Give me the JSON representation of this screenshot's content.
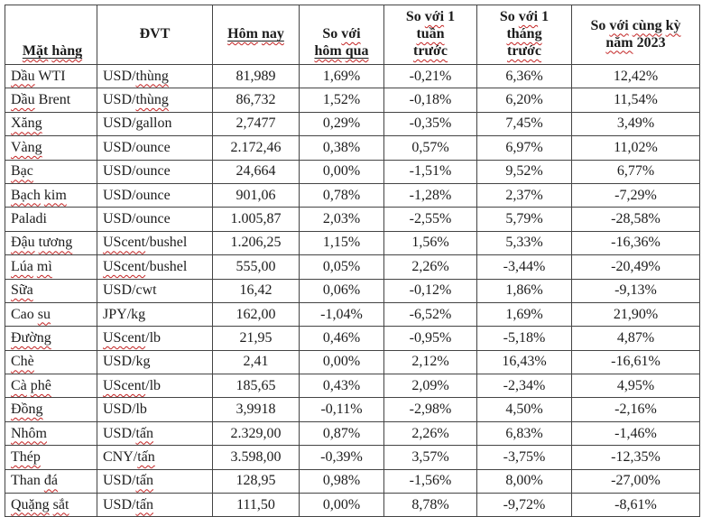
{
  "table": {
    "title_semantic": "commodity-price-change-table",
    "colors": {
      "text": "#1c1c1c",
      "border": "#444444",
      "spellcheck_wavy": "#c22222",
      "background": "#ffffff"
    },
    "headers": [
      {
        "id": "mat-hang",
        "lines": [
          {
            "text": "Mặt hàng",
            "underline": true
          }
        ]
      },
      {
        "id": "dvt",
        "lines": [
          {
            "text": "ĐVT",
            "underline": false
          }
        ]
      },
      {
        "id": "hom-nay",
        "lines": [
          {
            "text": "Hôm nay",
            "underline": true
          }
        ]
      },
      {
        "id": "so-voi-hom-qua",
        "lines": [
          {
            "text": "So với",
            "underline": false
          },
          {
            "text": "hôm qua",
            "underline": true
          }
        ]
      },
      {
        "id": "so-voi-1-tuan-truoc",
        "lines": [
          {
            "text": "So với 1",
            "underline": false
          },
          {
            "text": "tuần",
            "underline": false
          },
          {
            "text": "trước",
            "underline": false
          }
        ]
      },
      {
        "id": "so-voi-1-thang-truoc",
        "lines": [
          {
            "text": "So với 1",
            "underline": false
          },
          {
            "text": "tháng",
            "underline": false
          },
          {
            "text": "trước",
            "underline": false
          }
        ]
      },
      {
        "id": "so-voi-cung-ky-2023",
        "lines": [
          {
            "text": "So với cùng kỳ",
            "underline": false
          },
          {
            "text": "năm 2023",
            "underline": false
          }
        ]
      }
    ],
    "rows": [
      {
        "name": "Dầu WTI",
        "unit": "USD/thùng",
        "today": "81,989",
        "vs_yesterday": "1,69%",
        "vs_1_week": "-0,21%",
        "vs_1_month": "6,36%",
        "vs_2023": "12,42%"
      },
      {
        "name": "Dầu Brent",
        "unit": "USD/thùng",
        "today": "86,732",
        "vs_yesterday": "1,52%",
        "vs_1_week": "-0,18%",
        "vs_1_month": "6,20%",
        "vs_2023": "11,54%"
      },
      {
        "name": "Xăng",
        "unit": "USD/gallon",
        "today": "2,7477",
        "vs_yesterday": "0,29%",
        "vs_1_week": "-0,35%",
        "vs_1_month": "7,45%",
        "vs_2023": "3,49%"
      },
      {
        "name": "Vàng",
        "unit": "USD/ounce",
        "today": "2.172,46",
        "vs_yesterday": "0,38%",
        "vs_1_week": "0,57%",
        "vs_1_month": "6,97%",
        "vs_2023": "11,02%"
      },
      {
        "name": "Bạc",
        "unit": "USD/ounce",
        "today": "24,664",
        "vs_yesterday": "0,00%",
        "vs_1_week": "-1,51%",
        "vs_1_month": "9,52%",
        "vs_2023": "6,77%"
      },
      {
        "name": "Bạch kim",
        "unit": "USD/ounce",
        "today": "901,06",
        "vs_yesterday": "0,78%",
        "vs_1_week": "-1,28%",
        "vs_1_month": "2,37%",
        "vs_2023": "-7,29%"
      },
      {
        "name": "Paladi",
        "unit": "USD/ounce",
        "today": "1.005,87",
        "vs_yesterday": "2,03%",
        "vs_1_week": "-2,55%",
        "vs_1_month": "5,79%",
        "vs_2023": "-28,58%"
      },
      {
        "name": "Đậu tương",
        "unit": "UScent/bushel",
        "today": "1.206,25",
        "vs_yesterday": "1,15%",
        "vs_1_week": "1,56%",
        "vs_1_month": "5,33%",
        "vs_2023": "-16,36%"
      },
      {
        "name": "Lúa mì",
        "unit": "UScent/bushel",
        "today": "555,00",
        "vs_yesterday": "0,05%",
        "vs_1_week": "2,26%",
        "vs_1_month": "-3,44%",
        "vs_2023": "-20,49%"
      },
      {
        "name": "Sữa",
        "unit": "USD/cwt",
        "today": "16,42",
        "vs_yesterday": "0,06%",
        "vs_1_week": "-0,12%",
        "vs_1_month": "1,86%",
        "vs_2023": "-9,13%"
      },
      {
        "name": "Cao su",
        "unit": "JPY/kg",
        "today": "162,00",
        "vs_yesterday": "-1,04%",
        "vs_1_week": "-6,52%",
        "vs_1_month": "1,69%",
        "vs_2023": "21,90%"
      },
      {
        "name": "Đường",
        "unit": "UScent/lb",
        "today": "21,95",
        "vs_yesterday": "0,46%",
        "vs_1_week": "-0,95%",
        "vs_1_month": "-5,18%",
        "vs_2023": "4,87%"
      },
      {
        "name": "Chè",
        "unit": "USD/kg",
        "today": "2,41",
        "vs_yesterday": "0,00%",
        "vs_1_week": "2,12%",
        "vs_1_month": "16,43%",
        "vs_2023": "-16,61%"
      },
      {
        "name": "Cà phê",
        "unit": "UScent/lb",
        "today": "185,65",
        "vs_yesterday": "0,43%",
        "vs_1_week": "2,09%",
        "vs_1_month": "-2,34%",
        "vs_2023": "4,95%"
      },
      {
        "name": "Đồng",
        "unit": "USD/lb",
        "today": "3,9918",
        "vs_yesterday": "-0,11%",
        "vs_1_week": "-2,98%",
        "vs_1_month": "4,50%",
        "vs_2023": "-2,16%"
      },
      {
        "name": "Nhôm",
        "unit": "USD/tấn",
        "today": "2.329,00",
        "vs_yesterday": "0,87%",
        "vs_1_week": "2,26%",
        "vs_1_month": "6,83%",
        "vs_2023": "-1,46%"
      },
      {
        "name": "Thép",
        "unit": "CNY/tấn",
        "today": "3.598,00",
        "vs_yesterday": "-0,39%",
        "vs_1_week": "3,57%",
        "vs_1_month": "-3,75%",
        "vs_2023": "-12,35%"
      },
      {
        "name": "Than đá",
        "unit": "USD/tấn",
        "today": "128,95",
        "vs_yesterday": "0,98%",
        "vs_1_week": "-1,56%",
        "vs_1_month": "8,00%",
        "vs_2023": "-27,00%"
      },
      {
        "name": "Quặng sắt",
        "unit": "USD/tấn",
        "today": "111,50",
        "vs_yesterday": "0,00%",
        "vs_1_week": "8,78%",
        "vs_1_month": "-9,72%",
        "vs_2023": "-8,61%"
      }
    ],
    "wavy_words": [
      "Mặt",
      "hàng",
      "Hôm",
      "nay",
      "với",
      "hôm",
      "qua",
      "tuần",
      "trước",
      "tháng",
      "cùng",
      "kỳ",
      "năm",
      "Dầu",
      "Xăng",
      "Vàng",
      "Bạc",
      "Bạch",
      "kim",
      "Đậu",
      "tương",
      "Lúa",
      "mì",
      "Sữa",
      "su",
      "Đường",
      "Chè",
      "Cà",
      "phê",
      "Đồng",
      "Nhôm",
      "Thép",
      "đá",
      "Quặng",
      "sắt",
      "thùng",
      "tấn",
      "UScent"
    ]
  }
}
